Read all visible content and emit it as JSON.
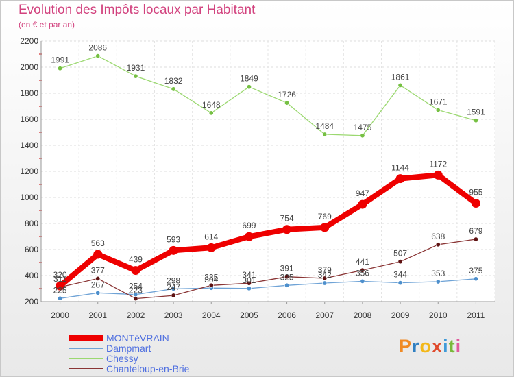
{
  "title": "Evolution des Impôts locaux par Habitant",
  "subtitle": "(en € et par an)",
  "logo": {
    "text": "Proxiti",
    "letters": [
      {
        "ch": "P",
        "color": "#f08a24"
      },
      {
        "ch": "r",
        "color": "#2f7fc1"
      },
      {
        "ch": "o",
        "color": "#f3b81a"
      },
      {
        "ch": "x",
        "color": "#e04a2c"
      },
      {
        "ch": "i",
        "color": "#3f9ad8"
      },
      {
        "ch": "t",
        "color": "#79b83a"
      },
      {
        "ch": "i",
        "color": "#e05a9c"
      }
    ]
  },
  "chart_data": {
    "type": "line",
    "title": "Evolution des Impôts locaux par Habitant",
    "subtitle": "(en € et par an)",
    "xlabel": "",
    "ylabel": "",
    "x": [
      "2000",
      "2001",
      "2002",
      "2003",
      "2004",
      "2005",
      "2006",
      "2007",
      "2008",
      "2009",
      "2010",
      "2011"
    ],
    "ylim": [
      200,
      2200
    ],
    "yticks": [
      200,
      400,
      600,
      800,
      1000,
      1200,
      1400,
      1600,
      1800,
      2000,
      2200
    ],
    "grid": true,
    "legend_position": "bottom-left",
    "series": [
      {
        "name": "MONTéVRAIN",
        "color": "#ee0000",
        "marker": "#ee0000",
        "weight": "heavy",
        "legend_color": "#4f6fe0",
        "values": [
          320,
          563,
          439,
          593,
          614,
          699,
          754,
          769,
          947,
          1144,
          1172,
          955
        ]
      },
      {
        "name": "Dampmart",
        "color": "#6fa3d6",
        "marker": "#4d8fcc",
        "weight": "light",
        "legend_color": "#4f6fe0",
        "values": [
          225,
          267,
          254,
          298,
          304,
          301,
          325,
          342,
          356,
          344,
          353,
          375
        ]
      },
      {
        "name": "Chessy",
        "color": "#9bd870",
        "marker": "#76c043",
        "weight": "light",
        "legend_color": "#4f6fe0",
        "values": [
          1991,
          2086,
          1931,
          1832,
          1648,
          1849,
          1726,
          1484,
          1475,
          1861,
          1671,
          1591
        ]
      },
      {
        "name": "Chanteloup-en-Brie",
        "color": "#8a3535",
        "marker": "#5e1212",
        "weight": "light",
        "legend_color": "#4f6fe0",
        "values": [
          311,
          377,
          223,
          247,
          325,
          341,
          391,
          379,
          441,
          507,
          638,
          679
        ]
      }
    ]
  }
}
